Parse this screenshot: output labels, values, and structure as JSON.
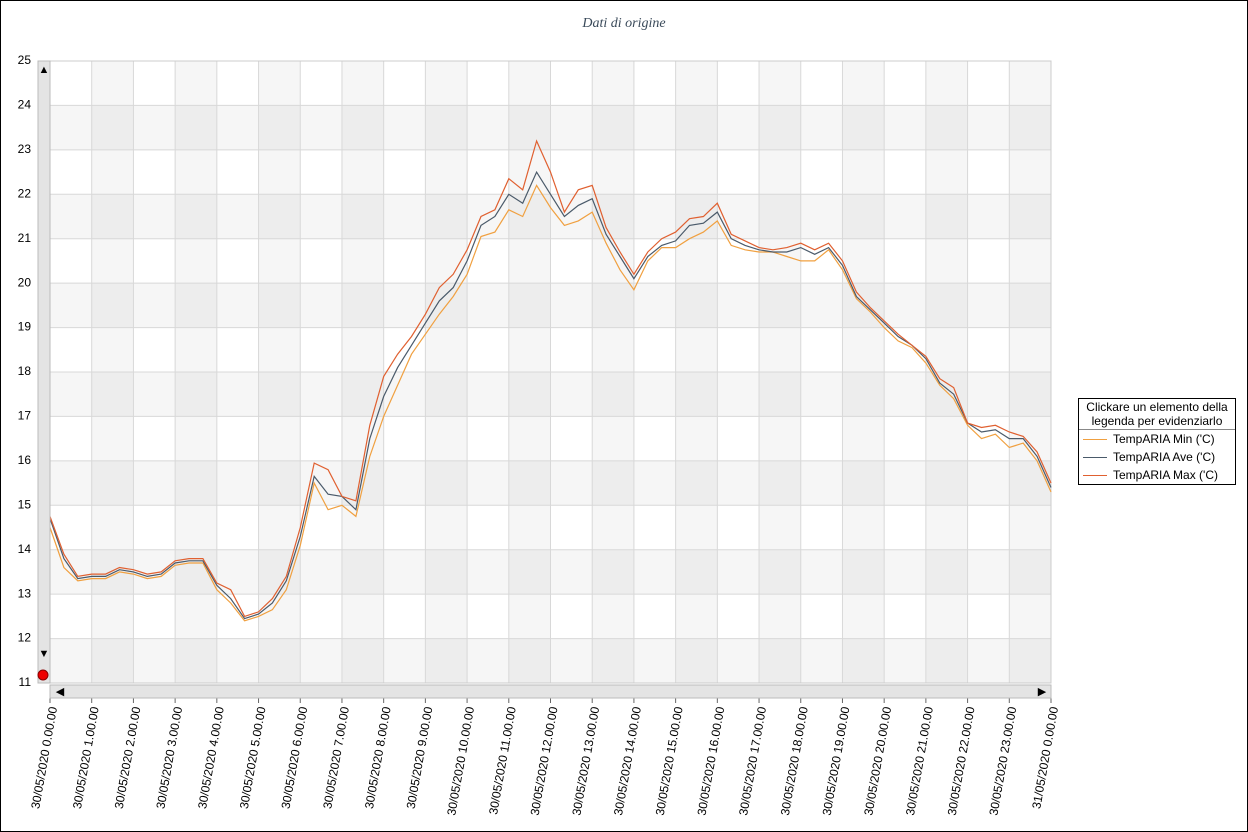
{
  "chart_data": {
    "type": "line",
    "title": "Dati di origine",
    "legend_title": "Clickare un elemento della legenda per evidenziarlo",
    "legend_position": "right",
    "x": [
      "30/05/2020 0.00.00",
      "30/05/2020 0.20.00",
      "30/05/2020 0.40.00",
      "30/05/2020 1.00.00",
      "30/05/2020 1.20.00",
      "30/05/2020 1.40.00",
      "30/05/2020 2.00.00",
      "30/05/2020 2.20.00",
      "30/05/2020 2.40.00",
      "30/05/2020 3.00.00",
      "30/05/2020 3.20.00",
      "30/05/2020 3.40.00",
      "30/05/2020 4.00.00",
      "30/05/2020 4.20.00",
      "30/05/2020 4.40.00",
      "30/05/2020 5.00.00",
      "30/05/2020 5.20.00",
      "30/05/2020 5.40.00",
      "30/05/2020 6.00.00",
      "30/05/2020 6.20.00",
      "30/05/2020 6.40.00",
      "30/05/2020 7.00.00",
      "30/05/2020 7.20.00",
      "30/05/2020 7.40.00",
      "30/05/2020 8.00.00",
      "30/05/2020 8.20.00",
      "30/05/2020 8.40.00",
      "30/05/2020 9.00.00",
      "30/05/2020 9.20.00",
      "30/05/2020 9.40.00",
      "30/05/2020 10.00.00",
      "30/05/2020 10.20.00",
      "30/05/2020 10.40.00",
      "30/05/2020 11.00.00",
      "30/05/2020 11.20.00",
      "30/05/2020 11.40.00",
      "30/05/2020 12.00.00",
      "30/05/2020 12.20.00",
      "30/05/2020 12.40.00",
      "30/05/2020 13.00.00",
      "30/05/2020 13.20.00",
      "30/05/2020 13.40.00",
      "30/05/2020 14.00.00",
      "30/05/2020 14.20.00",
      "30/05/2020 14.40.00",
      "30/05/2020 15.00.00",
      "30/05/2020 15.20.00",
      "30/05/2020 15.40.00",
      "30/05/2020 16.00.00",
      "30/05/2020 16.20.00",
      "30/05/2020 16.40.00",
      "30/05/2020 17.00.00",
      "30/05/2020 17.20.00",
      "30/05/2020 17.40.00",
      "30/05/2020 18.00.00",
      "30/05/2020 18.20.00",
      "30/05/2020 18.40.00",
      "30/05/2020 19.00.00",
      "30/05/2020 19.20.00",
      "30/05/2020 19.40.00",
      "30/05/2020 20.00.00",
      "30/05/2020 20.20.00",
      "30/05/2020 20.40.00",
      "30/05/2020 21.00.00",
      "30/05/2020 21.20.00",
      "30/05/2020 21.40.00",
      "30/05/2020 22.00.00",
      "30/05/2020 22.20.00",
      "30/05/2020 22.40.00",
      "30/05/2020 23.00.00",
      "30/05/2020 23.20.00",
      "30/05/2020 23.40.00",
      "31/05/2020 0.00.00"
    ],
    "series": [
      {
        "name": "TempARIA Min ('C)",
        "color": "#f0a040",
        "values": [
          14.5,
          13.6,
          13.3,
          13.35,
          13.35,
          13.5,
          13.45,
          13.35,
          13.4,
          13.65,
          13.7,
          13.7,
          13.1,
          12.8,
          12.4,
          12.5,
          12.65,
          13.1,
          14.1,
          15.5,
          14.9,
          15.0,
          14.75,
          16.1,
          17.0,
          17.7,
          18.4,
          18.85,
          19.3,
          19.7,
          20.2,
          21.05,
          21.15,
          21.65,
          21.5,
          22.2,
          21.7,
          21.3,
          21.4,
          21.6,
          20.9,
          20.3,
          19.85,
          20.5,
          20.8,
          20.8,
          21.0,
          21.15,
          21.4,
          20.85,
          20.75,
          20.7,
          20.7,
          20.6,
          20.5,
          20.5,
          20.75,
          20.3,
          19.65,
          19.35,
          19.0,
          18.7,
          18.55,
          18.2,
          17.7,
          17.4,
          16.8,
          16.5,
          16.6,
          16.3,
          16.4,
          16.0,
          15.3
        ]
      },
      {
        "name": "TempARIA Ave ('C)",
        "color": "#4a5a6a",
        "values": [
          14.7,
          13.8,
          13.35,
          13.4,
          13.4,
          13.55,
          13.5,
          13.4,
          13.45,
          13.7,
          13.75,
          13.75,
          13.2,
          12.9,
          12.45,
          12.55,
          12.8,
          13.3,
          14.3,
          15.65,
          15.25,
          15.2,
          14.9,
          16.5,
          17.45,
          18.1,
          18.6,
          19.1,
          19.6,
          19.9,
          20.5,
          21.3,
          21.5,
          22.0,
          21.8,
          22.5,
          22.0,
          21.5,
          21.75,
          21.9,
          21.1,
          20.6,
          20.1,
          20.6,
          20.85,
          20.95,
          21.3,
          21.35,
          21.6,
          21.0,
          20.85,
          20.75,
          20.7,
          20.7,
          20.8,
          20.65,
          20.8,
          20.4,
          19.7,
          19.4,
          19.1,
          18.8,
          18.6,
          18.3,
          17.75,
          17.5,
          16.85,
          16.65,
          16.7,
          16.5,
          16.5,
          16.1,
          15.4
        ]
      },
      {
        "name": "TempARIA Max ('C)",
        "color": "#e06030",
        "values": [
          14.75,
          13.9,
          13.4,
          13.45,
          13.45,
          13.6,
          13.55,
          13.45,
          13.5,
          13.75,
          13.8,
          13.8,
          13.25,
          13.1,
          12.5,
          12.6,
          12.9,
          13.4,
          14.5,
          15.95,
          15.8,
          15.2,
          15.1,
          16.8,
          17.9,
          18.4,
          18.8,
          19.3,
          19.9,
          20.2,
          20.75,
          21.5,
          21.65,
          22.35,
          22.1,
          23.2,
          22.5,
          21.6,
          22.1,
          22.2,
          21.25,
          20.7,
          20.2,
          20.7,
          21.0,
          21.15,
          21.45,
          21.5,
          21.8,
          21.1,
          20.95,
          20.8,
          20.75,
          20.8,
          20.9,
          20.75,
          20.9,
          20.5,
          19.8,
          19.45,
          19.15,
          18.85,
          18.6,
          18.35,
          17.85,
          17.65,
          16.85,
          16.75,
          16.8,
          16.65,
          16.55,
          16.2,
          15.5
        ]
      }
    ],
    "xlim": [
      "30/05/2020 0.00.00",
      "31/05/2020 0.00.00"
    ],
    "xticks": [
      "30/05/2020 0.00.00",
      "30/05/2020 1.00.00",
      "30/05/2020 2.00.00",
      "30/05/2020 3.00.00",
      "30/05/2020 4.00.00",
      "30/05/2020 5.00.00",
      "30/05/2020 6.00.00",
      "30/05/2020 7.00.00",
      "30/05/2020 8.00.00",
      "30/05/2020 9.00.00",
      "30/05/2020 10.00.00",
      "30/05/2020 11.00.00",
      "30/05/2020 12.00.00",
      "30/05/2020 13.00.00",
      "30/05/2020 14.00.00",
      "30/05/2020 15.00.00",
      "30/05/2020 16.00.00",
      "30/05/2020 17.00.00",
      "30/05/2020 18.00.00",
      "30/05/2020 19.00.00",
      "30/05/2020 20.00.00",
      "30/05/2020 21.00.00",
      "30/05/2020 22.00.00",
      "30/05/2020 23.00.00",
      "31/05/2020 0.00.00"
    ],
    "ylim": [
      11,
      25
    ],
    "yticks": [
      11,
      12,
      13,
      14,
      15,
      16,
      17,
      18,
      19,
      20,
      21,
      22,
      23,
      24,
      25
    ],
    "grid": true
  }
}
